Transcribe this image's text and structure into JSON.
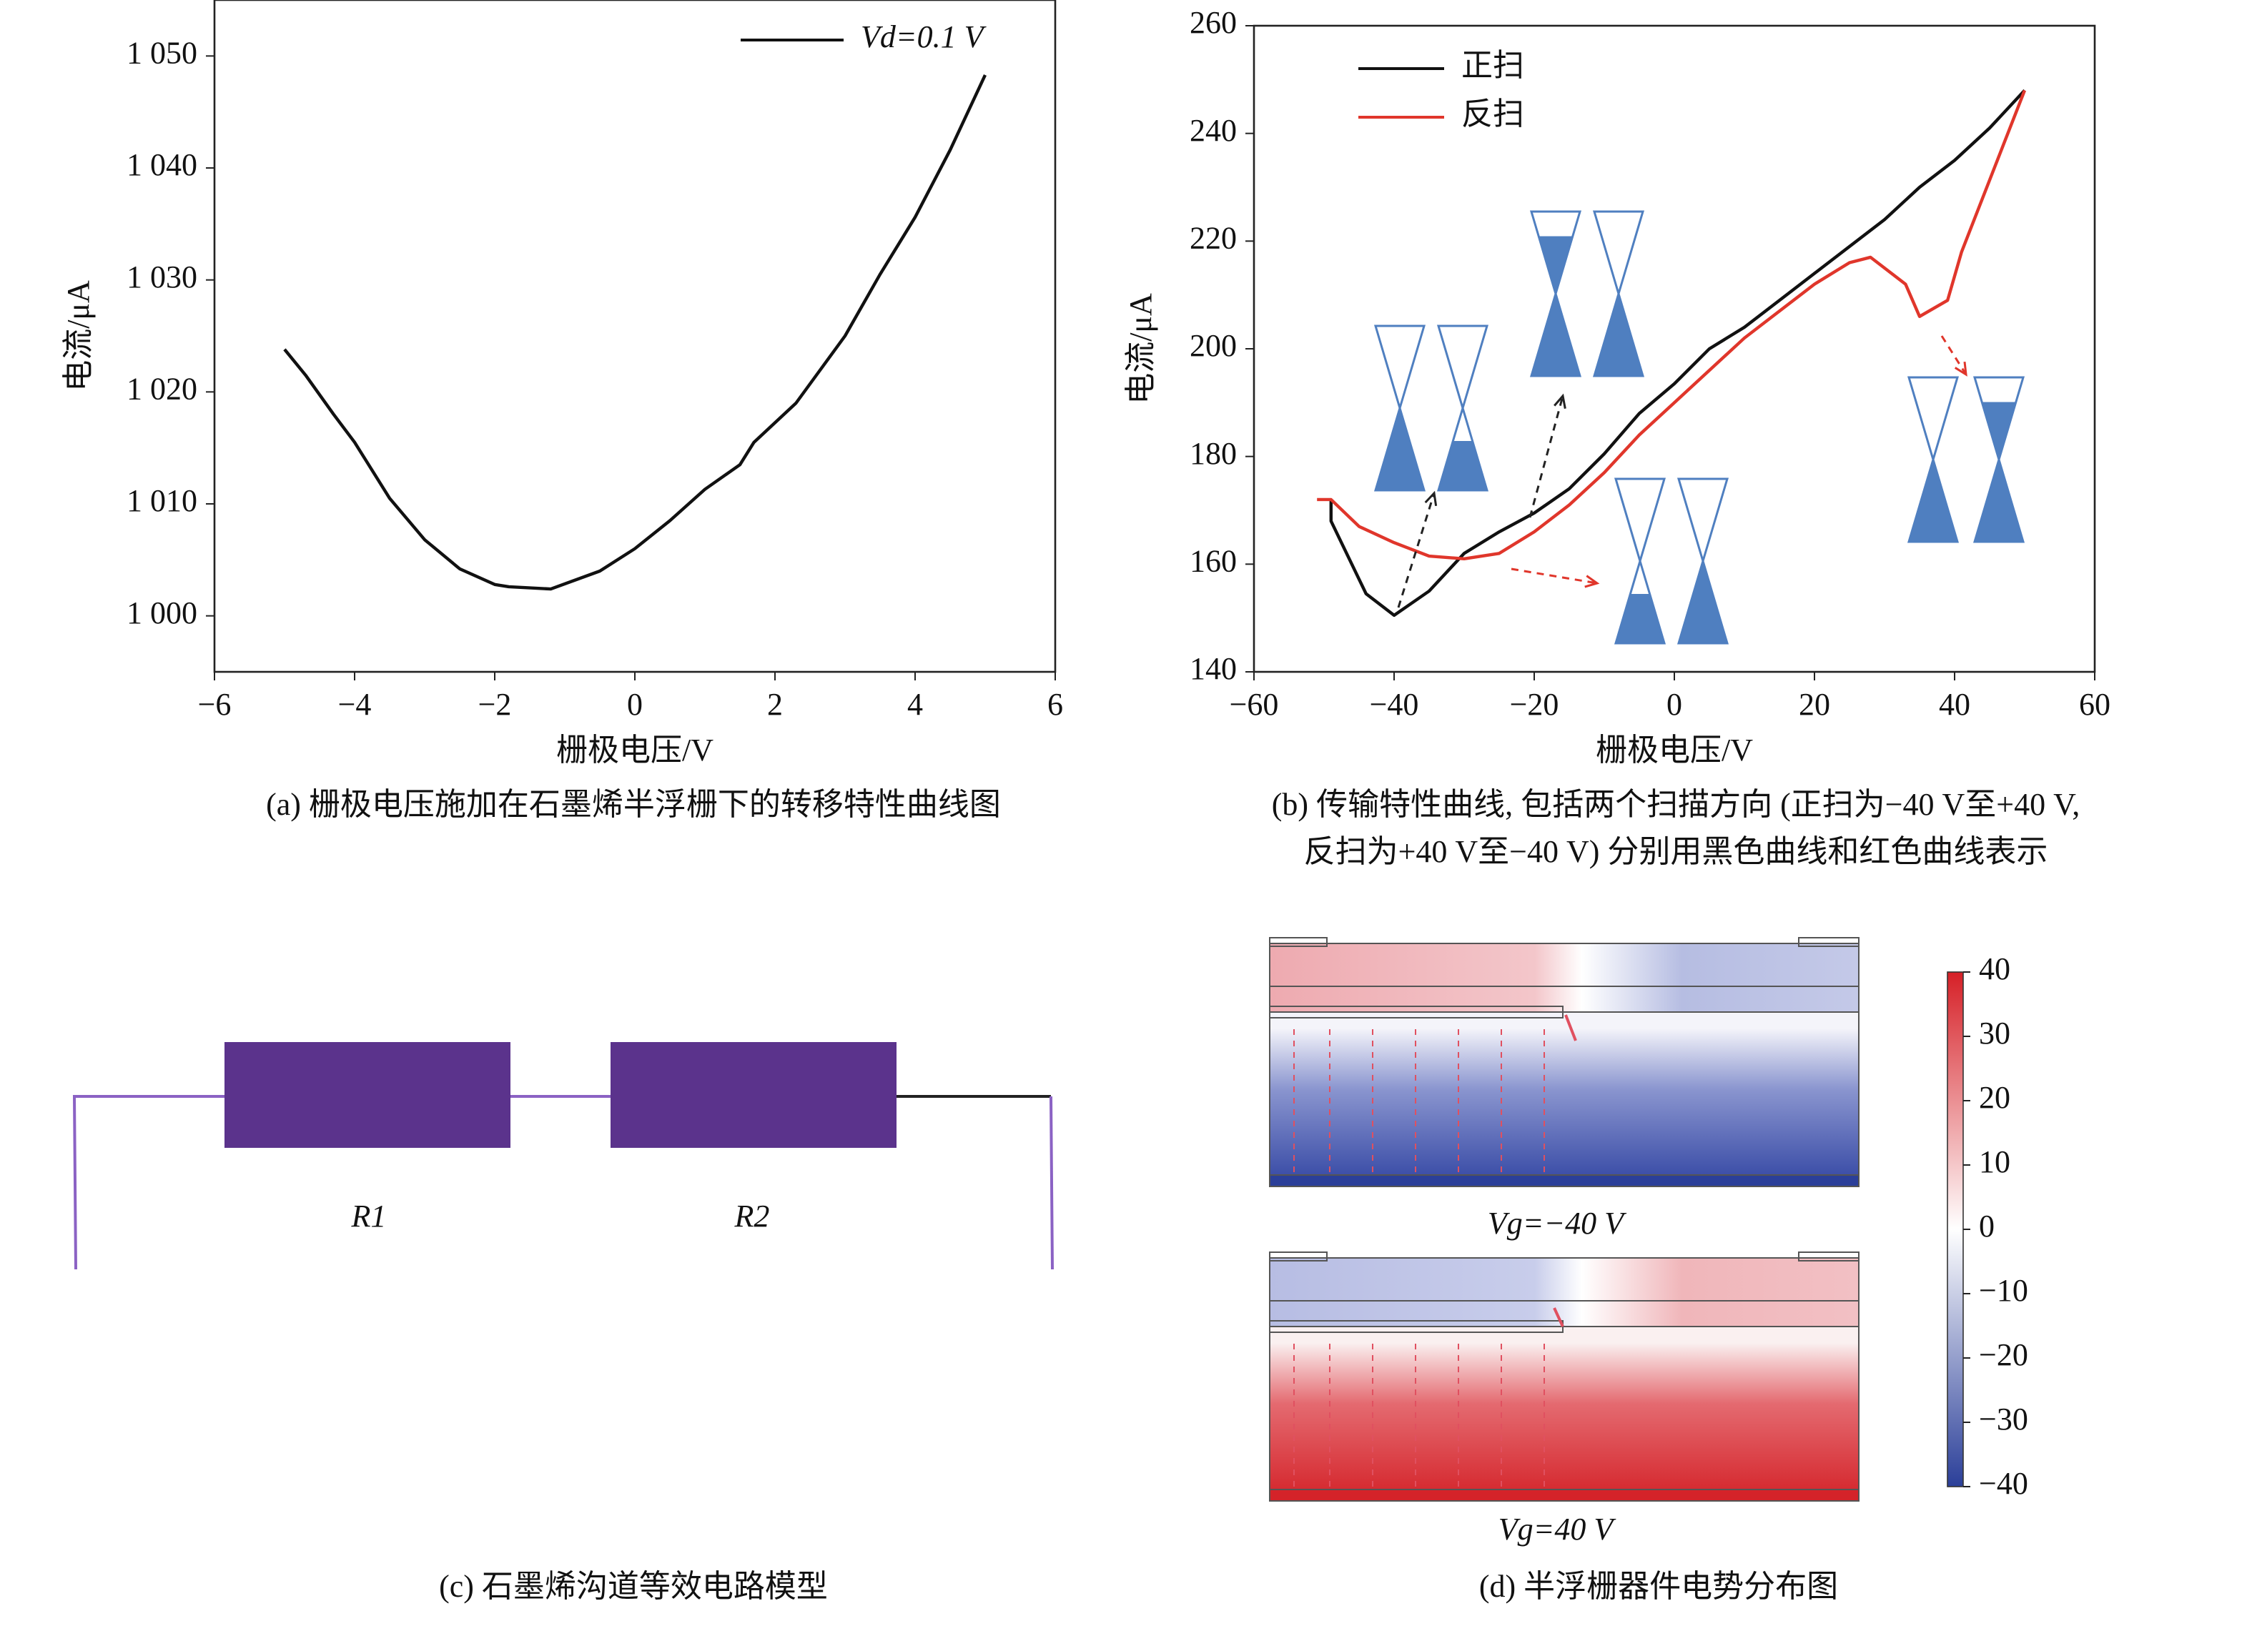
{
  "chart_data": [
    {
      "type": "line",
      "xlabel": "栅极电压/V",
      "ylabel": "电流/μA",
      "caption": [
        "(a) 栅极电压施加在石墨烯半浮栅下的转移特性曲线图"
      ],
      "xlim": [
        -6,
        6
      ],
      "ylim": [
        995,
        1055
      ],
      "xticks": [
        {
          "value": -6,
          "label": "−6"
        },
        {
          "value": -4,
          "label": "−4"
        },
        {
          "value": -2,
          "label": "−2"
        },
        0,
        2,
        4,
        6
      ],
      "yticks": [
        {
          "value": 1000,
          "label": "1 000"
        },
        {
          "value": 1010,
          "label": "1 010"
        },
        {
          "value": 1020,
          "label": "1 020"
        },
        {
          "value": 1030,
          "label": "1 030"
        },
        {
          "value": 1040,
          "label": "1 040"
        },
        {
          "value": 1050,
          "label": "1 050"
        }
      ],
      "legend": "upper right",
      "series": [
        {
          "name": "Vd=0.1 V",
          "color": "#111111",
          "x": [
            -5,
            -4.7,
            -4.3,
            -4,
            -3.5,
            -3,
            -2.5,
            -2,
            -1.8,
            -1.2,
            -0.5,
            0,
            0.5,
            1,
            1.5,
            1.7,
            2.3,
            3,
            3.5,
            4,
            4.5,
            5
          ],
          "values": [
            1023.8,
            1021.5,
            1018,
            1015.5,
            1010.5,
            1006.8,
            1004.2,
            1002.8,
            1002.6,
            1002.4,
            1004,
            1006,
            1008.5,
            1011.3,
            1013.5,
            1015.5,
            1019,
            1025,
            1030.5,
            1035.6,
            1041.6,
            1048.3
          ]
        }
      ]
    },
    {
      "type": "line",
      "xlabel": "栅极电压/V",
      "ylabel": "电流/μA",
      "caption": [
        "(b) 传输特性曲线, 包括两个扫描方向 (正扫为−40 V至+40 V,",
        "反扫为+40 V至−40 V) 分别用黑色曲线和红色曲线表示"
      ],
      "xlim": [
        -60,
        60
      ],
      "ylim": [
        140,
        260
      ],
      "xticks": [
        {
          "value": -60,
          "label": "−60"
        },
        {
          "value": -40,
          "label": "−40"
        },
        {
          "value": -20,
          "label": "−20"
        },
        0,
        20,
        40,
        60
      ],
      "yticks": [
        140,
        160,
        180,
        200,
        220,
        240,
        260
      ],
      "legend": "upper left",
      "series": [
        {
          "name": "正扫",
          "color": "#111111",
          "x": [
            -49,
            -49,
            -44,
            -40,
            -35,
            -30,
            -25,
            -20,
            -15,
            -10,
            -5,
            0,
            5,
            10,
            15,
            20,
            25,
            30,
            35,
            40,
            45,
            50
          ],
          "values": [
            172,
            168,
            154.5,
            150.5,
            155,
            162,
            166,
            169.5,
            174,
            180.5,
            188,
            193.5,
            200,
            204,
            209,
            214,
            219,
            224,
            230,
            235,
            241,
            248
          ]
        },
        {
          "name": "反扫",
          "color": "#e0362b",
          "x": [
            50,
            47,
            44,
            41,
            39,
            35,
            33,
            28,
            25,
            20,
            15,
            10,
            5,
            0,
            -5,
            -10,
            -15,
            -20,
            -25,
            -30,
            -35,
            -40,
            -45,
            -49,
            -51
          ],
          "values": [
            248,
            238,
            228,
            218,
            209,
            206,
            212,
            217,
            216,
            212,
            207,
            202,
            196,
            190,
            184,
            177,
            171,
            166,
            162,
            161,
            161.5,
            164,
            167,
            172,
            172
          ]
        }
      ]
    }
  ],
  "circuit": {
    "labels": [
      "R1",
      "R2"
    ],
    "caption": "(c) 石墨烯沟道等效电路模型"
  },
  "potential_map": {
    "maps": [
      "Vg=−40 V",
      "Vg=40 V"
    ],
    "caption": "(d) 半浮栅器件电势分布图",
    "colorbar": {
      "clim": [
        -40,
        40
      ],
      "colors": [
        "#2b3f99",
        "#ffffff",
        "#d62027"
      ],
      "ticks": [
        40,
        30,
        20,
        10,
        0,
        {
          "value": -10,
          "label": "−10"
        },
        {
          "value": -20,
          "label": "−20"
        },
        {
          "value": -30,
          "label": "−30"
        },
        {
          "value": -40,
          "label": "−40"
        }
      ]
    }
  }
}
